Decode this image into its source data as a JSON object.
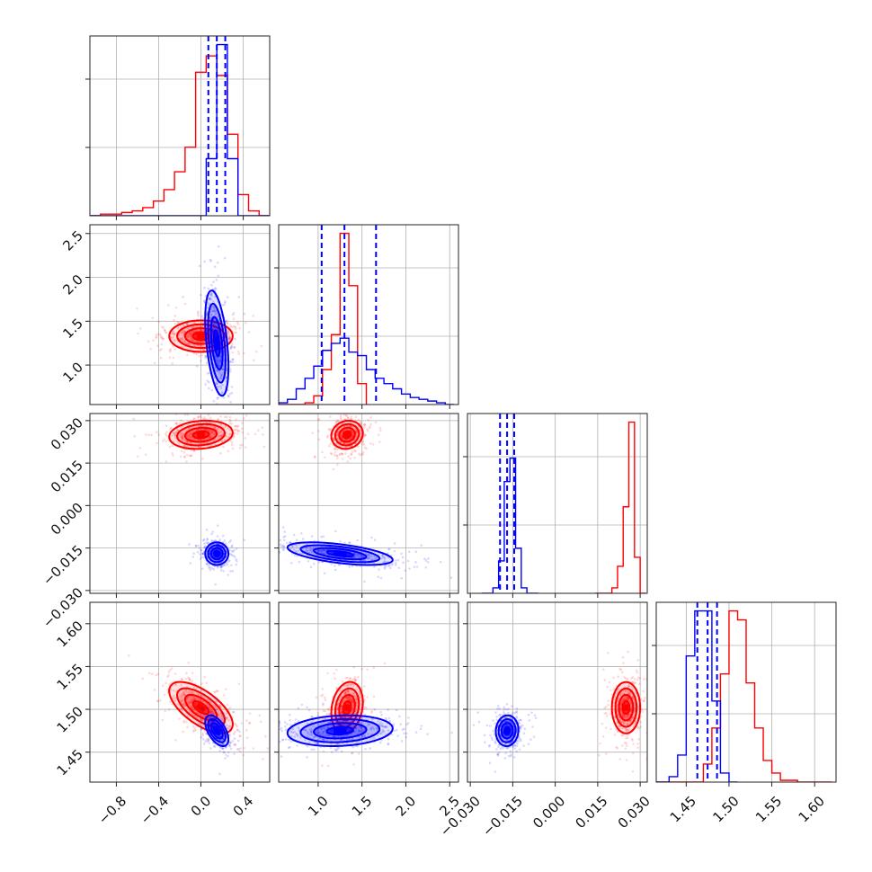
{
  "colors": {
    "series_a": "#ff0000",
    "series_b": "#0000ff",
    "grid": "#b0b0b0"
  },
  "chart_data": {
    "type": "corner",
    "grid": true,
    "parameters": [
      {
        "ticks": [
          -0.8,
          -0.4,
          0.0,
          0.4
        ],
        "tick_labels": [
          "−0.8",
          "−0.4",
          "0.0",
          "0.4"
        ],
        "range": [
          -1.05,
          0.65
        ]
      },
      {
        "ticks": [
          1.0,
          1.5,
          2.0,
          2.5
        ],
        "tick_labels": [
          "1.0",
          "1.5",
          "2.0",
          "2.5"
        ],
        "range": [
          0.55,
          2.6
        ]
      },
      {
        "ticks": [
          -0.03,
          -0.015,
          0.0,
          0.015,
          0.03
        ],
        "tick_labels": [
          "−0.030",
          "−0.015",
          "0.000",
          "0.015",
          "0.030"
        ],
        "range": [
          -0.031,
          0.0325
        ]
      },
      {
        "ticks": [
          1.45,
          1.5,
          1.55,
          1.6
        ],
        "tick_labels": [
          "1.45",
          "1.50",
          "1.55",
          "1.60"
        ],
        "range": [
          1.415,
          1.625
        ]
      }
    ],
    "series": [
      {
        "color": "#ff0000",
        "mean": [
          0.0,
          1.33,
          0.025,
          1.502
        ],
        "sd": [
          0.15,
          0.09,
          0.0025,
          0.015
        ],
        "corr": {
          "0-1": 0.0,
          "0-2": 0.15,
          "0-3": -0.65,
          "1-2": 0.1,
          "1-3": 0.2,
          "2-3": 0.0
        },
        "hist": [
          {
            "edges": [
              -1.05,
              -0.95,
              -0.85,
              -0.75,
              -0.65,
              -0.55,
              -0.45,
              -0.35,
              -0.25,
              -0.15,
              -0.05,
              0.05,
              0.15,
              0.25,
              0.35,
              0.45,
              0.55,
              0.65
            ],
            "counts": [
              0,
              1,
              1,
              2,
              3,
              5,
              9,
              16,
              27,
              42,
              88,
              98,
              86,
              50,
              13,
              3,
              0
            ]
          },
          {
            "edges": [
              0.55,
              0.65,
              0.75,
              0.85,
              0.95,
              1.05,
              1.15,
              1.25,
              1.35,
              1.45,
              1.55
            ],
            "counts": [
              0,
              0,
              0,
              1,
              5,
              20,
              40,
              98,
              68,
              12
            ]
          },
          {
            "edges": [
              0.014,
              0.016,
              0.018,
              0.02,
              0.022,
              0.024,
              0.026,
              0.028,
              0.03,
              0.032
            ],
            "counts": [
              0,
              0,
              0,
              3,
              15,
              48,
              95,
              20,
              0
            ]
          },
          {
            "edges": [
              1.41,
              1.42,
              1.43,
              1.44,
              1.45,
              1.46,
              1.47,
              1.48,
              1.49,
              1.5,
              1.51,
              1.52,
              1.53,
              1.54,
              1.55,
              1.56,
              1.57,
              1.58,
              1.59,
              1.6,
              1.61,
              1.62
            ],
            "counts": [
              0,
              0,
              0,
              0,
              0,
              0,
              10,
              30,
              60,
              95,
              90,
              55,
              30,
              12,
              5,
              1,
              1,
              0,
              0,
              0,
              0
            ]
          }
        ]
      },
      {
        "color": "#0000ff",
        "mean": [
          0.15,
          1.25,
          -0.017,
          1.475
        ],
        "sd": [
          0.055,
          0.3,
          0.002,
          0.009
        ],
        "corr": {
          "0-1": -0.45,
          "0-2": 0.0,
          "0-3": -0.55,
          "1-2": -0.55,
          "1-3": 0.15,
          "2-3": 0.05
        },
        "quantiles": [
          [
            0.07,
            0.15,
            0.23
          ],
          [
            1.04,
            1.3,
            1.66
          ],
          [
            -0.0195,
            -0.017,
            -0.0145
          ],
          [
            1.463,
            1.475,
            1.486
          ]
        ],
        "hist": [
          {
            "edges": [
              -1.05,
              -0.95,
              -0.85,
              -0.75,
              -0.65,
              -0.55,
              -0.45,
              -0.35,
              -0.25,
              -0.15,
              -0.05,
              0.05,
              0.15,
              0.25,
              0.35,
              0.45,
              0.55,
              0.65
            ],
            "counts": [
              0,
              0,
              0,
              0,
              0,
              0,
              0,
              0,
              0,
              0,
              0,
              35,
              105,
              35,
              0,
              0,
              0
            ]
          },
          {
            "edges": [
              0.55,
              0.65,
              0.75,
              0.85,
              0.95,
              1.05,
              1.15,
              1.25,
              1.35,
              1.45,
              1.55,
              1.65,
              1.75,
              1.85,
              1.95,
              2.05,
              2.15,
              2.25,
              2.35,
              2.45,
              2.55
            ],
            "counts": [
              1,
              3,
              9,
              15,
              22,
              31,
              35,
              38,
              30,
              28,
              20,
              15,
              12,
              9,
              6,
              4,
              3,
              2,
              1,
              0
            ]
          },
          {
            "edges": [
              -0.026,
              -0.024,
              -0.022,
              -0.02,
              -0.018,
              -0.016,
              -0.014,
              -0.012,
              -0.01,
              -0.008,
              -0.006
            ],
            "counts": [
              0,
              0,
              3,
              18,
              62,
              75,
              25,
              3,
              0,
              0
            ]
          },
          {
            "edges": [
              1.41,
              1.42,
              1.43,
              1.44,
              1.45,
              1.46,
              1.47,
              1.48,
              1.49,
              1.5,
              1.51
            ],
            "counts": [
              0,
              0,
              3,
              15,
              70,
              95,
              95,
              45,
              5,
              0
            ]
          }
        ]
      }
    ]
  }
}
